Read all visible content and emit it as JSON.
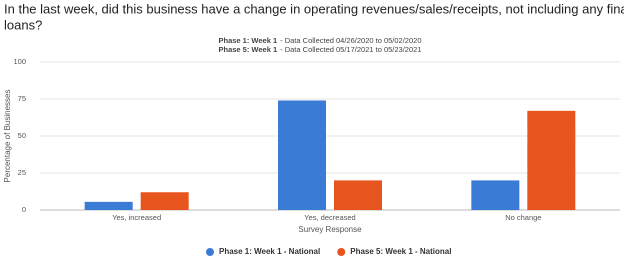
{
  "chart_data": {
    "type": "bar",
    "title": [
      "In the last week, did this business have a change in operating revenues/sales/receipts, not including any financial assistance or",
      "loans?"
    ],
    "subtitle": [
      {
        "bold": "Phase 1: Week 1",
        "text": "- Data Collected 04/26/2020 to 05/02/2020"
      },
      {
        "bold": "Phase 5: Week 1",
        "text": "- Data Collected 05/17/2021 to 05/23/2021"
      }
    ],
    "x_label": "Survey Response",
    "y_label": "Percentage of Businesses",
    "categories": [
      "Yes, increased",
      "Yes, decreased",
      "No change"
    ],
    "series": [
      {
        "name": "Phase 1: Week 1 - National",
        "color": "#3a7bd5",
        "values": [
          5.5,
          74,
          20
        ]
      },
      {
        "name": "Phase 5: Week 1 - National",
        "color": "#e8541e",
        "values": [
          12,
          20,
          67
        ]
      }
    ],
    "ylim": [
      0,
      100
    ],
    "yticks": [
      0,
      25,
      50,
      75,
      100
    ],
    "grid": true,
    "legend": "bottom"
  }
}
